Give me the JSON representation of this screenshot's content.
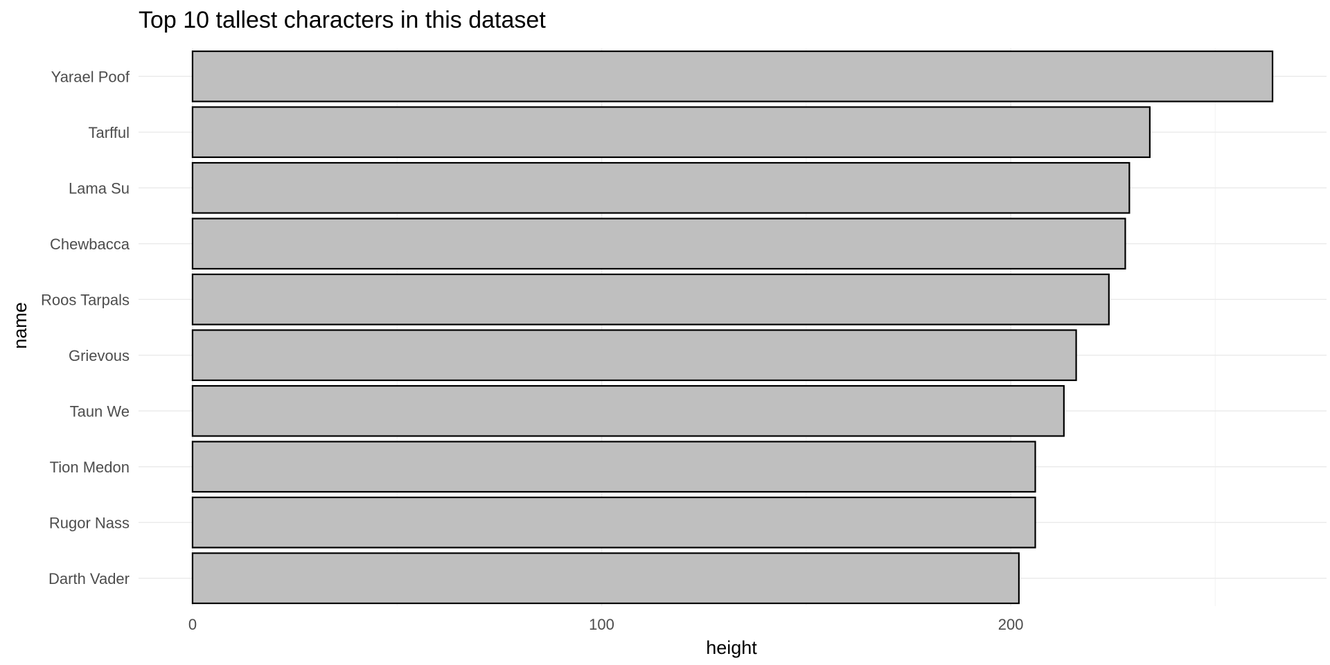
{
  "chart_data": {
    "type": "bar",
    "orientation": "horizontal",
    "title": "Top 10 tallest characters in this dataset",
    "xlabel": "height",
    "ylabel": "name",
    "categories": [
      "Yarael Poof",
      "Tarfful",
      "Lama Su",
      "Chewbacca",
      "Roos Tarpals",
      "Grievous",
      "Taun We",
      "Tion Medon",
      "Rugor Nass",
      "Darth Vader"
    ],
    "values": [
      264,
      234,
      229,
      228,
      224,
      216,
      213,
      206,
      206,
      202
    ],
    "x_ticks": [
      "0",
      "100",
      "200"
    ],
    "x_tick_values": [
      0,
      100,
      200
    ],
    "xlim": [
      -13.2,
      277.2
    ],
    "grid": true,
    "legend": "none",
    "bar_fill": "#bfbfbf",
    "bar_stroke": "#000000"
  }
}
